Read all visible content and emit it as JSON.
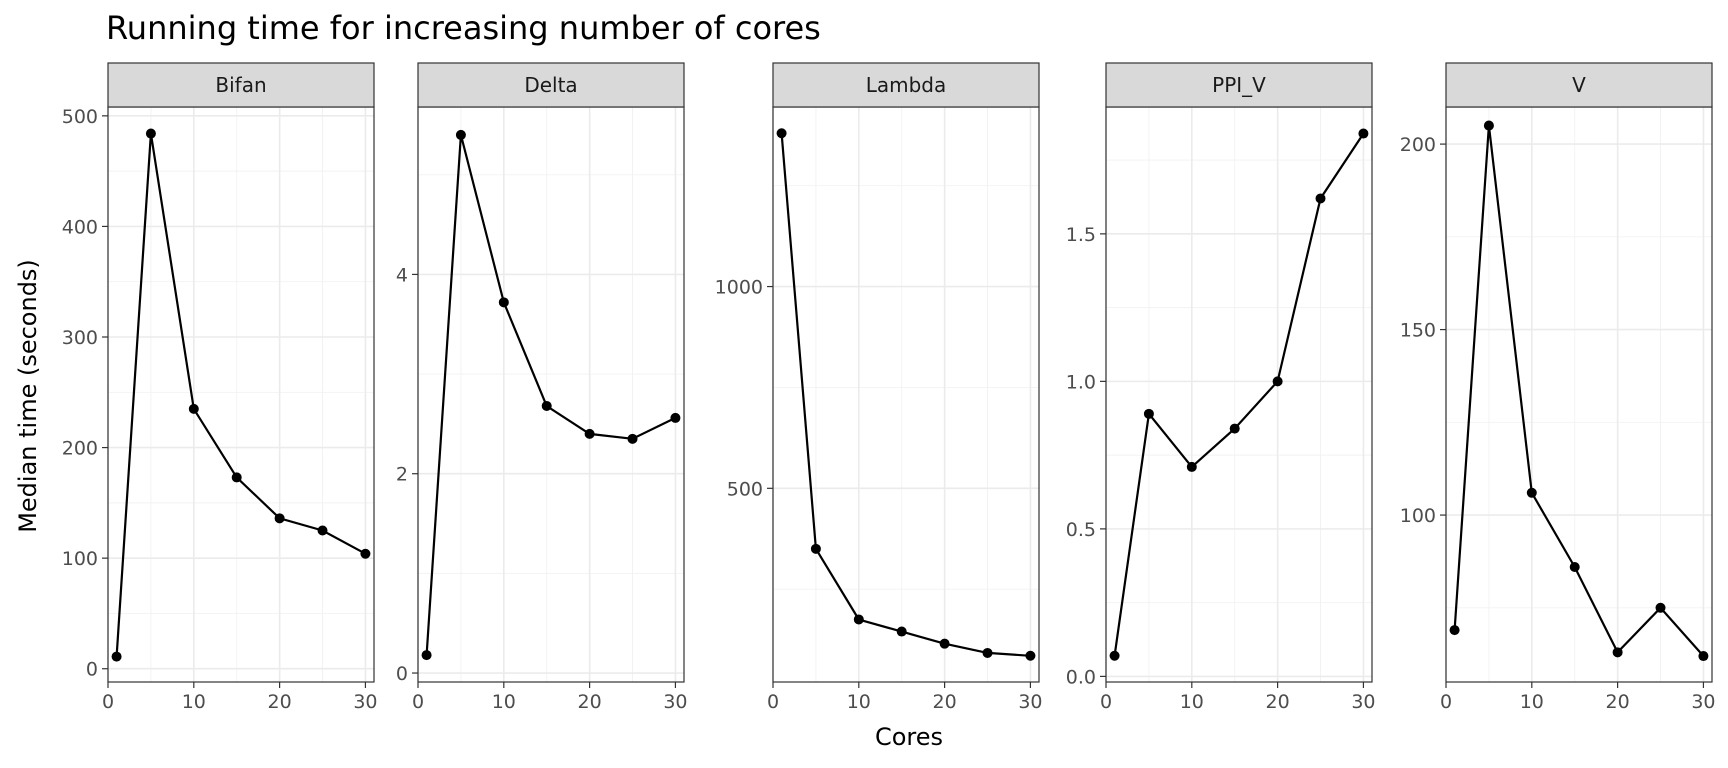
{
  "chart_data": {
    "type": "line",
    "title": "Running time for increasing number of cores",
    "xlabel": "Cores",
    "ylabel": "Median time (seconds)",
    "grid": true,
    "facet_layout": "1 row x 5 columns, independent y scales",
    "x": [
      1,
      5,
      10,
      15,
      20,
      25,
      30
    ],
    "x_ticks": [
      0,
      10,
      20,
      30
    ],
    "xlim": [
      0,
      31
    ],
    "panels": [
      {
        "name": "Bifan",
        "values": [
          11,
          484,
          235,
          173,
          136,
          125,
          104
        ],
        "y_ticks": [
          0,
          100,
          200,
          300,
          400,
          500
        ],
        "y_tick_labels": [
          "0",
          "100",
          "200",
          "300",
          "400",
          "500"
        ],
        "ylim": [
          -12,
          508
        ]
      },
      {
        "name": "Delta",
        "values": [
          0.18,
          5.4,
          3.72,
          2.68,
          2.4,
          2.35,
          2.56
        ],
        "y_ticks": [
          0,
          2,
          4
        ],
        "y_tick_labels": [
          "0",
          "2",
          "4"
        ],
        "ylim": [
          -0.09,
          5.68
        ]
      },
      {
        "name": "Lambda",
        "values": [
          1380,
          350,
          175,
          145,
          115,
          92,
          85
        ],
        "y_ticks": [
          500,
          1000
        ],
        "y_tick_labels": [
          "500",
          "1000"
        ],
        "ylim": [
          20,
          1445
        ]
      },
      {
        "name": "PPI_V",
        "values": [
          0.07,
          0.89,
          0.71,
          0.84,
          1.0,
          1.62,
          1.84
        ],
        "y_ticks": [
          0.0,
          0.5,
          1.0,
          1.5
        ],
        "y_tick_labels": [
          "0.0",
          "0.5",
          "1.0",
          "1.5"
        ],
        "ylim": [
          -0.019,
          1.93
        ]
      },
      {
        "name": "V",
        "values": [
          69,
          205,
          106,
          86,
          63,
          75,
          62
        ],
        "y_ticks": [
          100,
          150,
          200
        ],
        "y_tick_labels": [
          "100",
          "150",
          "200"
        ],
        "ylim": [
          55,
          210
        ]
      }
    ]
  }
}
